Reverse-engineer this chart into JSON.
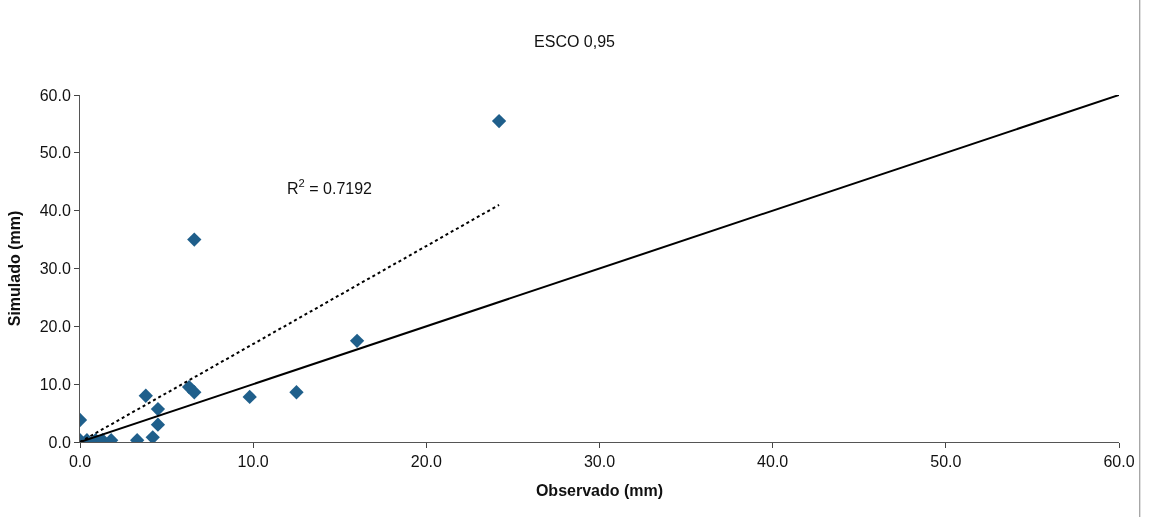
{
  "chart_data": {
    "type": "scatter",
    "title": "ESCO 0,95",
    "xlabel": "Observado (mm)",
    "ylabel": "Simulado (mm)",
    "xlim": [
      0,
      60
    ],
    "ylim": [
      0,
      60
    ],
    "xticks": [
      {
        "value": 0,
        "label": "0.0"
      },
      {
        "value": 10,
        "label": "10.0"
      },
      {
        "value": 20,
        "label": "20.0"
      },
      {
        "value": 30,
        "label": "30.0"
      },
      {
        "value": 40,
        "label": "40.0"
      },
      {
        "value": 50,
        "label": "50.0"
      },
      {
        "value": 60,
        "label": "60.0"
      }
    ],
    "yticks": [
      {
        "value": 0,
        "label": "0.0"
      },
      {
        "value": 10,
        "label": "10.0"
      },
      {
        "value": 20,
        "label": "20.0"
      },
      {
        "value": 30,
        "label": "30.0"
      },
      {
        "value": 40,
        "label": "40.0"
      },
      {
        "value": 50,
        "label": "50.0"
      },
      {
        "value": 60,
        "label": "60.0"
      }
    ],
    "annotations": [
      "R$^{2}$ = 0.7192"
    ],
    "series": [
      {
        "marker": "diamond",
        "color": "#1f5f8b",
        "x": [
          0,
          0,
          0.4,
          0.9,
          1.3,
          1.8,
          3.3,
          3.8,
          4.2,
          4.5,
          4.5,
          6.3,
          6.6,
          6.6,
          9.8,
          12.5,
          16.0,
          24.2
        ],
        "values": [
          3.8,
          0.3,
          0.3,
          0.3,
          0.3,
          0.3,
          0.3,
          8.0,
          0.8,
          3.0,
          5.7,
          9.5,
          8.6,
          35,
          7.8,
          8.6,
          17.5,
          55.5
        ]
      },
      {
        "type": "line",
        "line_style": "dotted",
        "color": "#000000",
        "x": [
          0,
          24.2
        ],
        "values": [
          0,
          41
        ]
      },
      {
        "type": "line",
        "line_style": "solid",
        "color": "#000000",
        "x": [
          0,
          60
        ],
        "values": [
          0,
          60
        ]
      }
    ]
  }
}
